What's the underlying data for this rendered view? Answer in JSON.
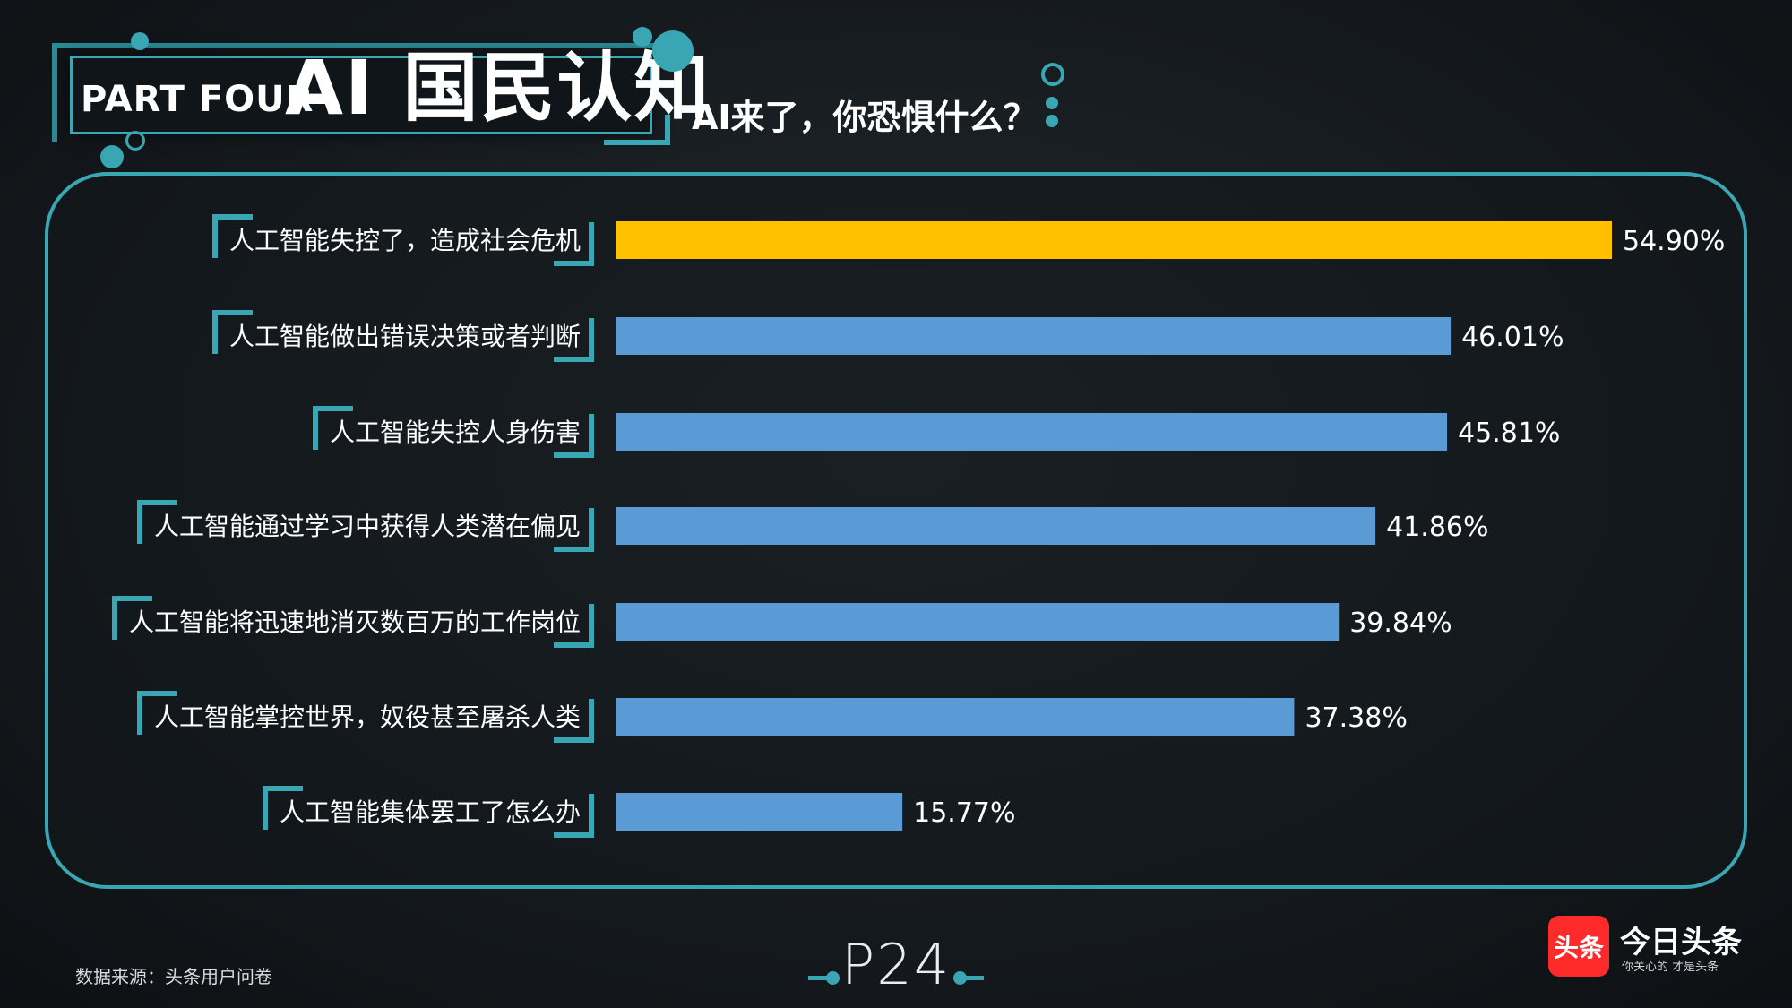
{
  "header": {
    "part_label": "PART FOUR",
    "section_title": "AI 国民认知",
    "subtitle": "AI来了，你恐惧什么？"
  },
  "chart_data": {
    "type": "bar",
    "orientation": "horizontal",
    "categories": [
      "人工智能失控了，造成社会危机",
      "人工智能做出错误决策或者判断",
      "人工智能失控人身伤害",
      "人工智能通过学习中获得人类潜在偏见",
      "人工智能将迅速地消灭数百万的工作岗位",
      "人工智能掌控世界，奴役甚至屠杀人类",
      "人工智能集体罢工了怎么办"
    ],
    "values": [
      54.9,
      46.01,
      45.81,
      41.86,
      39.84,
      37.38,
      15.77
    ],
    "value_labels": [
      "54.90%",
      "46.01%",
      "45.81%",
      "41.86%",
      "39.84%",
      "37.38%",
      "15.77%"
    ],
    "xlim": [
      0,
      54.9
    ],
    "highlight_index": 0,
    "colors": {
      "highlight": "#ffc000",
      "default": "#5b9bd5",
      "accent": "#39a6b4"
    },
    "grid": false,
    "legend": "none"
  },
  "footer": {
    "source": "数据来源：头条用户问卷",
    "page_number": "P24",
    "brand_icon_text": "头条",
    "brand_name": "今日头条",
    "brand_slogan": "你关心的 才是头条"
  }
}
